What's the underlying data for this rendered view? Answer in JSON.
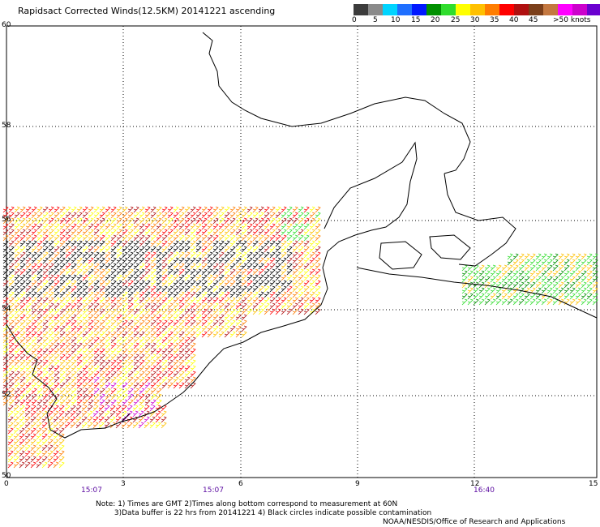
{
  "title": "Rapidsact Corrected Winds(12.5KM) 20141221 ascending",
  "color_scale": {
    "colors": [
      "#3c3c3c",
      "#8a8a8a",
      "#00d4ff",
      "#1f6fff",
      "#0018ff",
      "#009000",
      "#30dd2d",
      "#ffff00",
      "#ffc000",
      "#ff7d00",
      "#ff0000",
      "#b01010",
      "#7b3f1a",
      "#c47840",
      "#ff00ff",
      "#cc00cc",
      "#6a00d0"
    ],
    "labels": [
      "0",
      "5",
      "10",
      "15",
      "20",
      "25",
      "30",
      "35",
      "40",
      "45",
      ">50 knots"
    ]
  },
  "axes": {
    "lat_labels": [
      "60",
      "58",
      "56",
      "54",
      "52",
      "50"
    ],
    "lon_labels": [
      "0",
      "3",
      "6",
      "9",
      "12",
      "15"
    ]
  },
  "pass_times": [
    "15:07",
    "15:07",
    "16:40"
  ],
  "notes": {
    "line1": "Note: 1) Times are GMT 2)Times along bottom correspond to measurement at 60N",
    "line2": "3)Data buffer is 22 hrs from 20141221 4) Black circles indicate possible contamination"
  },
  "credit": "NOAA/NESDIS/Office of Research and Applications"
}
